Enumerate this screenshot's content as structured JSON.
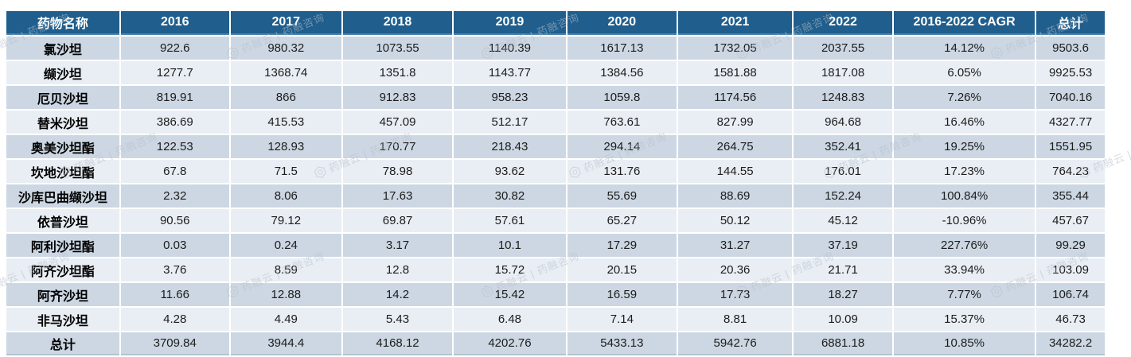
{
  "chart_data": {
    "type": "table",
    "columns": [
      "药物名称",
      "2016",
      "2017",
      "2018",
      "2019",
      "2020",
      "2021",
      "2022",
      "2016-2022 CAGR",
      "总计"
    ],
    "rows": [
      {
        "name": "氯沙坦",
        "values": [
          "922.6",
          "980.32",
          "1073.55",
          "1140.39",
          "1617.13",
          "1732.05",
          "2037.55",
          "14.12%",
          "9503.6"
        ]
      },
      {
        "name": "缬沙坦",
        "values": [
          "1277.7",
          "1368.74",
          "1351.8",
          "1143.77",
          "1384.56",
          "1581.88",
          "1817.08",
          "6.05%",
          "9925.53"
        ]
      },
      {
        "name": "厄贝沙坦",
        "values": [
          "819.91",
          "866",
          "912.83",
          "958.23",
          "1059.8",
          "1174.56",
          "1248.83",
          "7.26%",
          "7040.16"
        ]
      },
      {
        "name": "替米沙坦",
        "values": [
          "386.69",
          "415.53",
          "457.09",
          "512.17",
          "763.61",
          "827.99",
          "964.68",
          "16.46%",
          "4327.77"
        ]
      },
      {
        "name": "奥美沙坦酯",
        "values": [
          "122.53",
          "128.93",
          "170.77",
          "218.43",
          "294.14",
          "264.75",
          "352.41",
          "19.25%",
          "1551.95"
        ]
      },
      {
        "name": "坎地沙坦酯",
        "values": [
          "67.8",
          "71.5",
          "78.98",
          "93.62",
          "131.76",
          "144.55",
          "176.01",
          "17.23%",
          "764.23"
        ]
      },
      {
        "name": "沙库巴曲缬沙坦",
        "values": [
          "2.32",
          "8.06",
          "17.63",
          "30.82",
          "55.69",
          "88.69",
          "152.24",
          "100.84%",
          "355.44"
        ]
      },
      {
        "name": "依普沙坦",
        "values": [
          "90.56",
          "79.12",
          "69.87",
          "57.61",
          "65.27",
          "50.12",
          "45.12",
          "-10.96%",
          "457.67"
        ]
      },
      {
        "name": "阿利沙坦酯",
        "values": [
          "0.03",
          "0.24",
          "3.17",
          "10.1",
          "17.29",
          "31.27",
          "37.19",
          "227.76%",
          "99.29"
        ]
      },
      {
        "name": "阿齐沙坦酯",
        "values": [
          "3.76",
          "8.59",
          "12.8",
          "15.72",
          "20.15",
          "20.36",
          "21.71",
          "33.94%",
          "103.09"
        ]
      },
      {
        "name": "阿齐沙坦",
        "values": [
          "11.66",
          "12.88",
          "14.2",
          "15.42",
          "16.59",
          "17.73",
          "18.27",
          "7.77%",
          "106.74"
        ]
      },
      {
        "name": "非马沙坦",
        "values": [
          "4.28",
          "4.49",
          "5.43",
          "6.48",
          "7.14",
          "8.81",
          "10.09",
          "15.37%",
          "46.73"
        ]
      },
      {
        "name": "总计",
        "values": [
          "3709.84",
          "3944.4",
          "4168.12",
          "4202.76",
          "5433.13",
          "5942.76",
          "6881.18",
          "10.85%",
          "34282.2"
        ]
      }
    ]
  },
  "watermark": {
    "text": "药融云 | 药融咨询",
    "logo": "hexagon-fingerprint-logo-icon"
  },
  "colors": {
    "header_bg": "#1f5e8d",
    "header_text": "#ffffff",
    "row_band_dark": "#ccd7e3",
    "row_band_light": "#e9eef4",
    "body_text": "#1c1c1c",
    "watermark_gray": "#b7bfca"
  }
}
